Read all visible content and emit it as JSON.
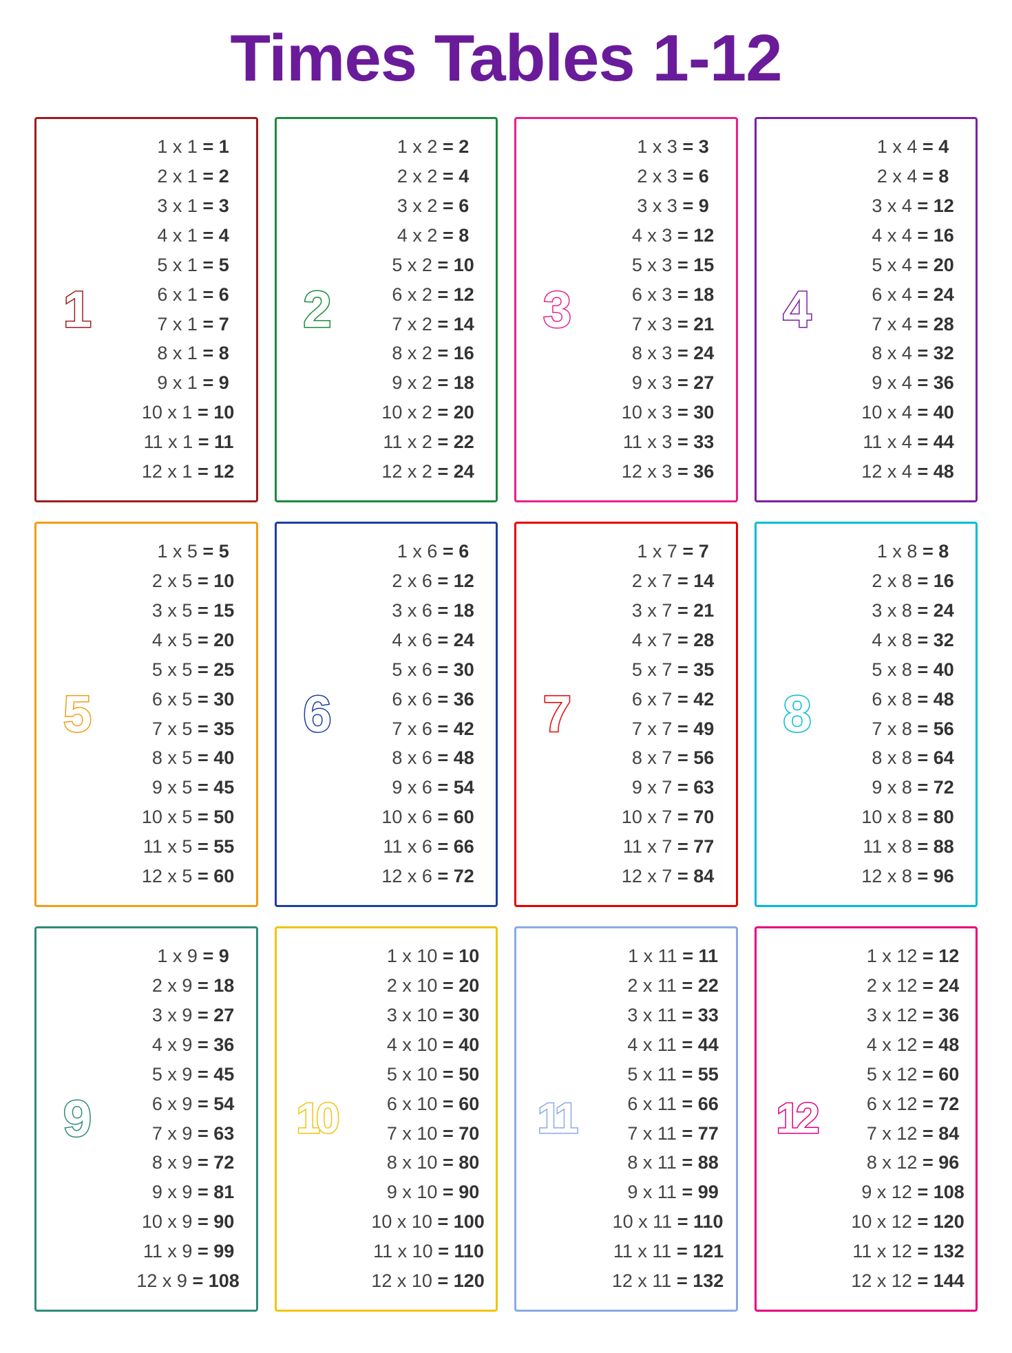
{
  "title": "Times Tables 1-12",
  "title_color": "#6a1b9a",
  "background_color": "#ffffff",
  "text_color": "#444444",
  "result_color": "#333333",
  "multiplier_range": [
    1,
    12
  ],
  "layout": {
    "columns": 4,
    "rows": 3,
    "card_border_width": 3,
    "card_border_radius": 4
  },
  "typography": {
    "title_fontsize": 96,
    "title_weight": 800,
    "equation_fontsize": 27,
    "digit_fontsize": 74,
    "digit_outline_width": 3
  },
  "tables": [
    {
      "n": 1,
      "color": "#9e1b1b",
      "products": [
        1,
        2,
        3,
        4,
        5,
        6,
        7,
        8,
        9,
        10,
        11,
        12
      ]
    },
    {
      "n": 2,
      "color": "#1b8a3a",
      "products": [
        2,
        4,
        6,
        8,
        10,
        12,
        14,
        16,
        18,
        20,
        22,
        24
      ]
    },
    {
      "n": 3,
      "color": "#e91e8c",
      "products": [
        3,
        6,
        9,
        12,
        15,
        18,
        21,
        24,
        27,
        30,
        33,
        36
      ]
    },
    {
      "n": 4,
      "color": "#7b1fa2",
      "products": [
        4,
        8,
        12,
        16,
        20,
        24,
        28,
        32,
        36,
        40,
        44,
        48
      ]
    },
    {
      "n": 5,
      "color": "#f39c12",
      "products": [
        5,
        10,
        15,
        20,
        25,
        30,
        35,
        40,
        45,
        50,
        55,
        60
      ]
    },
    {
      "n": 6,
      "color": "#1a3fa3",
      "products": [
        6,
        12,
        18,
        24,
        30,
        36,
        42,
        48,
        54,
        60,
        66,
        72
      ]
    },
    {
      "n": 7,
      "color": "#e60000",
      "products": [
        7,
        14,
        21,
        28,
        35,
        42,
        49,
        56,
        63,
        70,
        77,
        84
      ]
    },
    {
      "n": 8,
      "color": "#00bcd4",
      "products": [
        8,
        16,
        24,
        32,
        40,
        48,
        56,
        64,
        72,
        80,
        88,
        96
      ]
    },
    {
      "n": 9,
      "color": "#2e8b7a",
      "products": [
        9,
        18,
        27,
        36,
        45,
        54,
        63,
        72,
        81,
        90,
        99,
        108
      ]
    },
    {
      "n": 10,
      "color": "#f1c40f",
      "products": [
        10,
        20,
        30,
        40,
        50,
        60,
        70,
        80,
        90,
        100,
        110,
        120
      ]
    },
    {
      "n": 11,
      "color": "#8aa9e4",
      "products": [
        11,
        22,
        33,
        44,
        55,
        66,
        77,
        88,
        99,
        110,
        121,
        132
      ]
    },
    {
      "n": 12,
      "color": "#e6007e",
      "products": [
        12,
        24,
        36,
        48,
        60,
        72,
        84,
        96,
        108,
        120,
        132,
        144
      ]
    }
  ]
}
